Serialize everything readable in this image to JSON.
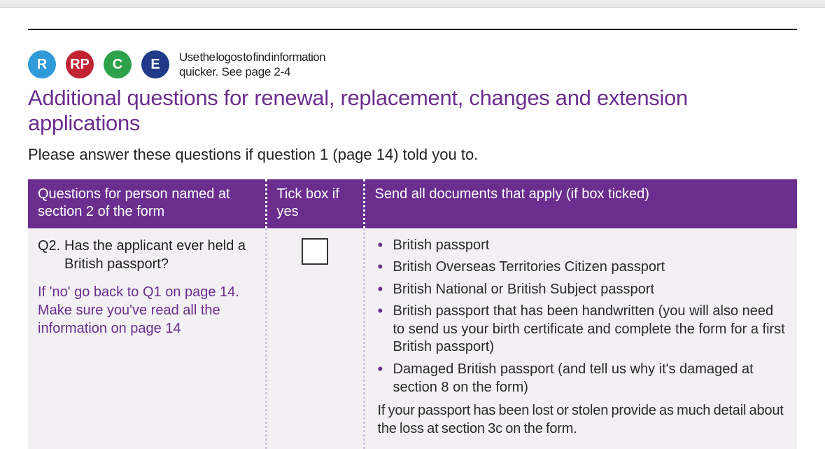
{
  "colors": {
    "purple": "#6b2e8f",
    "logo_r_bg": "#2f9bd8",
    "logo_rp_bg": "#c22433",
    "logo_c_bg": "#2ea24a",
    "logo_e_bg": "#1f3b87",
    "row_bg": "#f3f0f4",
    "body_text": "#2a2a2a"
  },
  "logos": {
    "r": "R",
    "rp": "RP",
    "c": "C",
    "e": "E",
    "hint_line1": "Use the logos to find information",
    "hint_line2": "quicker. See page 2-4"
  },
  "title": "Additional questions for renewal, replacement, changes and extension applications",
  "instruction": "Please answer these questions if question 1 (page 14) told you to.",
  "table": {
    "head": {
      "col1": "Questions for person named at section 2 of the form",
      "col2": "Tick box if yes",
      "col3": "Send all documents that apply (if box ticked)"
    },
    "row": {
      "q_num": "Q2.",
      "q_text": "Has the applicant ever held a British passport?",
      "hint": "If 'no' go back to Q1 on page 14. Make sure you've read all the information on page 14",
      "docs": [
        "British passport",
        "British Overseas Territories Citizen passport",
        "British National or British Subject passport",
        "British passport that has been handwritten (you will also need to send us your birth certificate and complete the form for a first British passport)",
        "Damaged British passport (and tell us why it's damaged at section 8 on the form)"
      ],
      "tail_note": "If your passport has been lost or stolen provide as much detail about the loss at section 3c on the form."
    }
  }
}
